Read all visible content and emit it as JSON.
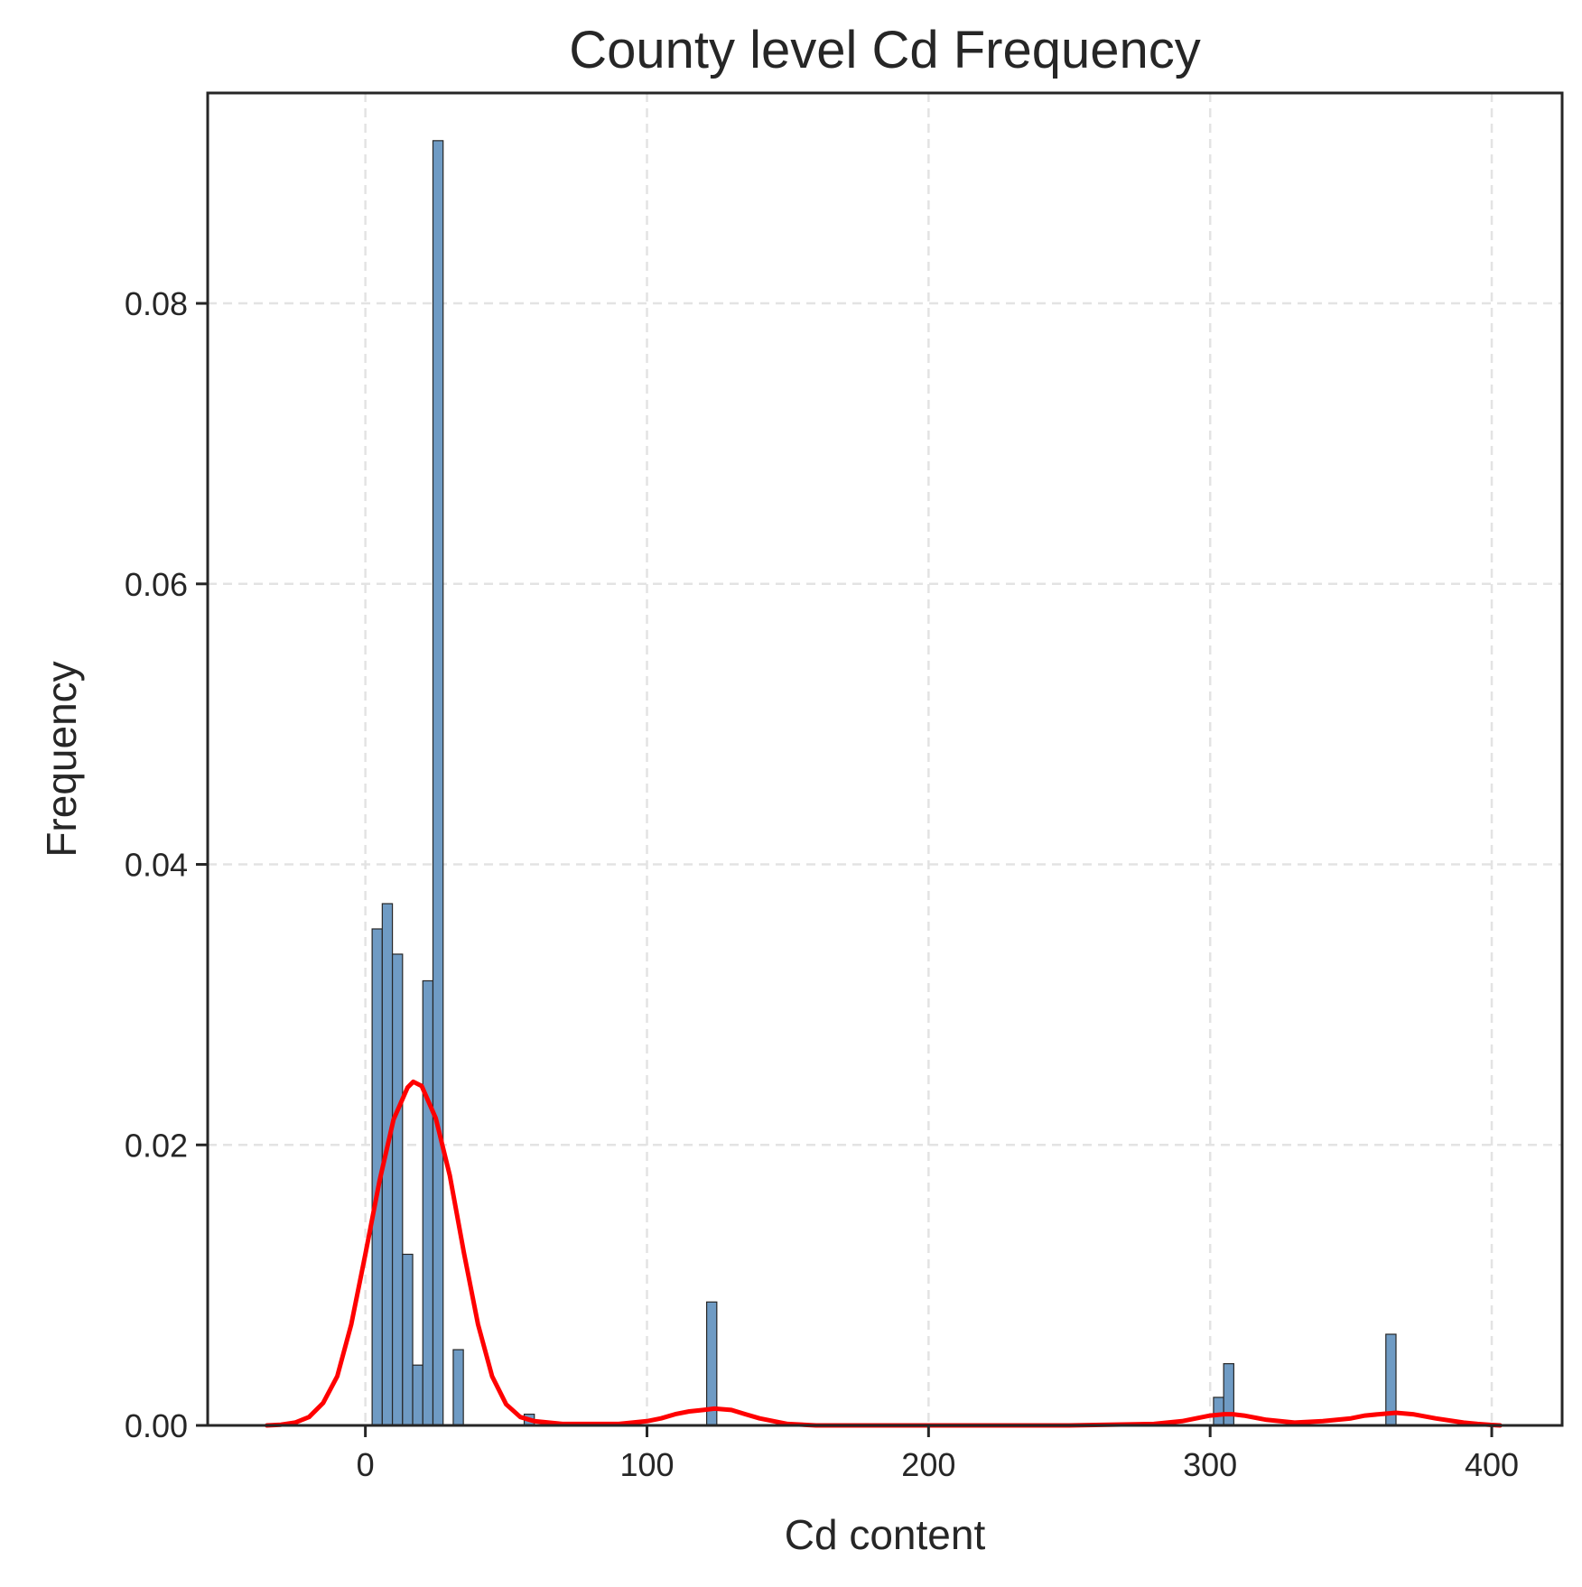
{
  "chart_data": {
    "type": "bar",
    "title": "County level Cd Frequency",
    "xlabel": "Cd content",
    "ylabel": "Frequency",
    "xlim": [
      -56,
      425
    ],
    "ylim": [
      0,
      0.095
    ],
    "x_ticks": [
      0,
      100,
      200,
      300,
      400
    ],
    "x_tick_labels": [
      "0",
      "100",
      "200",
      "300",
      "400"
    ],
    "y_ticks": [
      0,
      0.02,
      0.04,
      0.06,
      0.08
    ],
    "y_tick_labels": [
      "0.00",
      "0.02",
      "0.04",
      "0.06",
      "0.08"
    ],
    "grid": true,
    "bar_color": "#6f9bc4",
    "bar_edge_color": "#262626",
    "density_color": "#ff0000",
    "bin_width": 3.6,
    "bins": [
      {
        "x0": 2.4,
        "x1": 6.0,
        "value": 0.0354
      },
      {
        "x0": 6.0,
        "x1": 9.6,
        "value": 0.0372
      },
      {
        "x0": 9.6,
        "x1": 13.2,
        "value": 0.0336
      },
      {
        "x0": 13.2,
        "x1": 16.8,
        "value": 0.0122
      },
      {
        "x0": 16.8,
        "x1": 20.4,
        "value": 0.0043
      },
      {
        "x0": 20.4,
        "x1": 24.0,
        "value": 0.0317
      },
      {
        "x0": 24.0,
        "x1": 27.6,
        "value": 0.0916
      },
      {
        "x0": 31.2,
        "x1": 34.8,
        "value": 0.0054
      },
      {
        "x0": 56.4,
        "x1": 60.0,
        "value": 0.0008
      },
      {
        "x0": 121.2,
        "x1": 124.8,
        "value": 0.0088
      },
      {
        "x0": 301.2,
        "x1": 304.8,
        "value": 0.002
      },
      {
        "x0": 304.8,
        "x1": 308.4,
        "value": 0.0044
      },
      {
        "x0": 362.4,
        "x1": 366.0,
        "value": 0.0065
      }
    ],
    "density_curve": {
      "x": [
        -35,
        -30,
        -25,
        -20,
        -15,
        -10,
        -5,
        0,
        5,
        10,
        15,
        17,
        20,
        25,
        30,
        35,
        40,
        45,
        50,
        55,
        60,
        70,
        80,
        90,
        100,
        105,
        110,
        115,
        120,
        124,
        130,
        135,
        140,
        150,
        160,
        200,
        250,
        280,
        290,
        295,
        300,
        305,
        308,
        312,
        320,
        330,
        340,
        350,
        355,
        360,
        366,
        372,
        380,
        390,
        395,
        400,
        403
      ],
      "y": [
        0,
        5e-05,
        0.0002,
        0.0006,
        0.0016,
        0.0035,
        0.0072,
        0.0122,
        0.0174,
        0.0218,
        0.0241,
        0.0245,
        0.0242,
        0.0219,
        0.0178,
        0.0123,
        0.0072,
        0.0035,
        0.0015,
        0.0006,
        0.0003,
        0.0001,
        0.0001,
        0.0001,
        0.0003,
        0.0005,
        0.0008,
        0.001,
        0.0011,
        0.0012,
        0.0011,
        0.0008,
        0.0005,
        0.0001,
        0,
        0,
        0,
        0.0001,
        0.0003,
        0.0005,
        0.0007,
        0.0008,
        0.0008,
        0.0007,
        0.0004,
        0.0002,
        0.0003,
        0.0005,
        0.0007,
        0.0008,
        0.0009,
        0.0008,
        0.0005,
        0.0002,
        0.0001,
        3e-05,
        0
      ]
    }
  }
}
